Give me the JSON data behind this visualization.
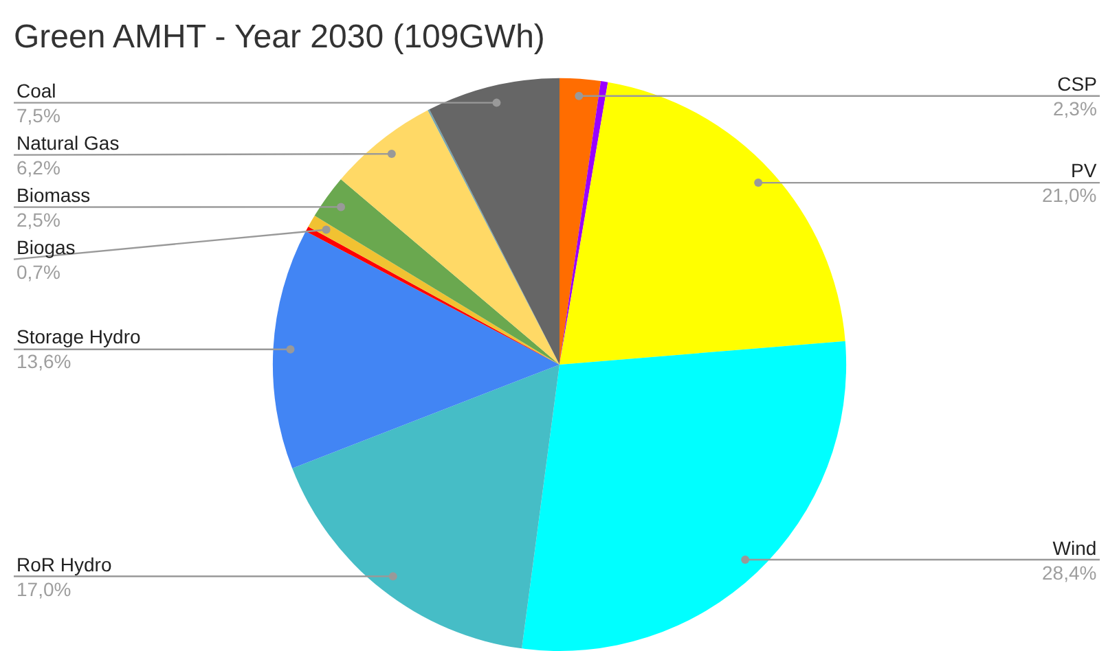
{
  "chart_data": {
    "type": "pie",
    "title": "Green AMHT - Year 2030 (109GWh)",
    "categories": [
      "CSP",
      null,
      "PV",
      "Wind",
      "RoR Hydro",
      "Storage Hydro",
      null,
      "Biogas",
      "Biomass",
      "Natural Gas",
      null,
      "Coal"
    ],
    "values": [
      2.3,
      0.4,
      21.0,
      28.4,
      17.0,
      13.6,
      0.3,
      0.7,
      2.5,
      6.2,
      0.1,
      7.5
    ],
    "value_labels": [
      "2,3%",
      null,
      "21,0%",
      "28,4%",
      "17,0%",
      "13,6%",
      null,
      "0,7%",
      "2,5%",
      "6,2%",
      null,
      "7,5%"
    ],
    "colors": [
      "#ff6d01",
      "#9900ff",
      "#ffff00",
      "#00ffff",
      "#46bdc6",
      "#4285f4",
      "#ff0000",
      "#f1c232",
      "#6aa84f",
      "#ffd966",
      "#76a5af",
      "#666666"
    ]
  }
}
